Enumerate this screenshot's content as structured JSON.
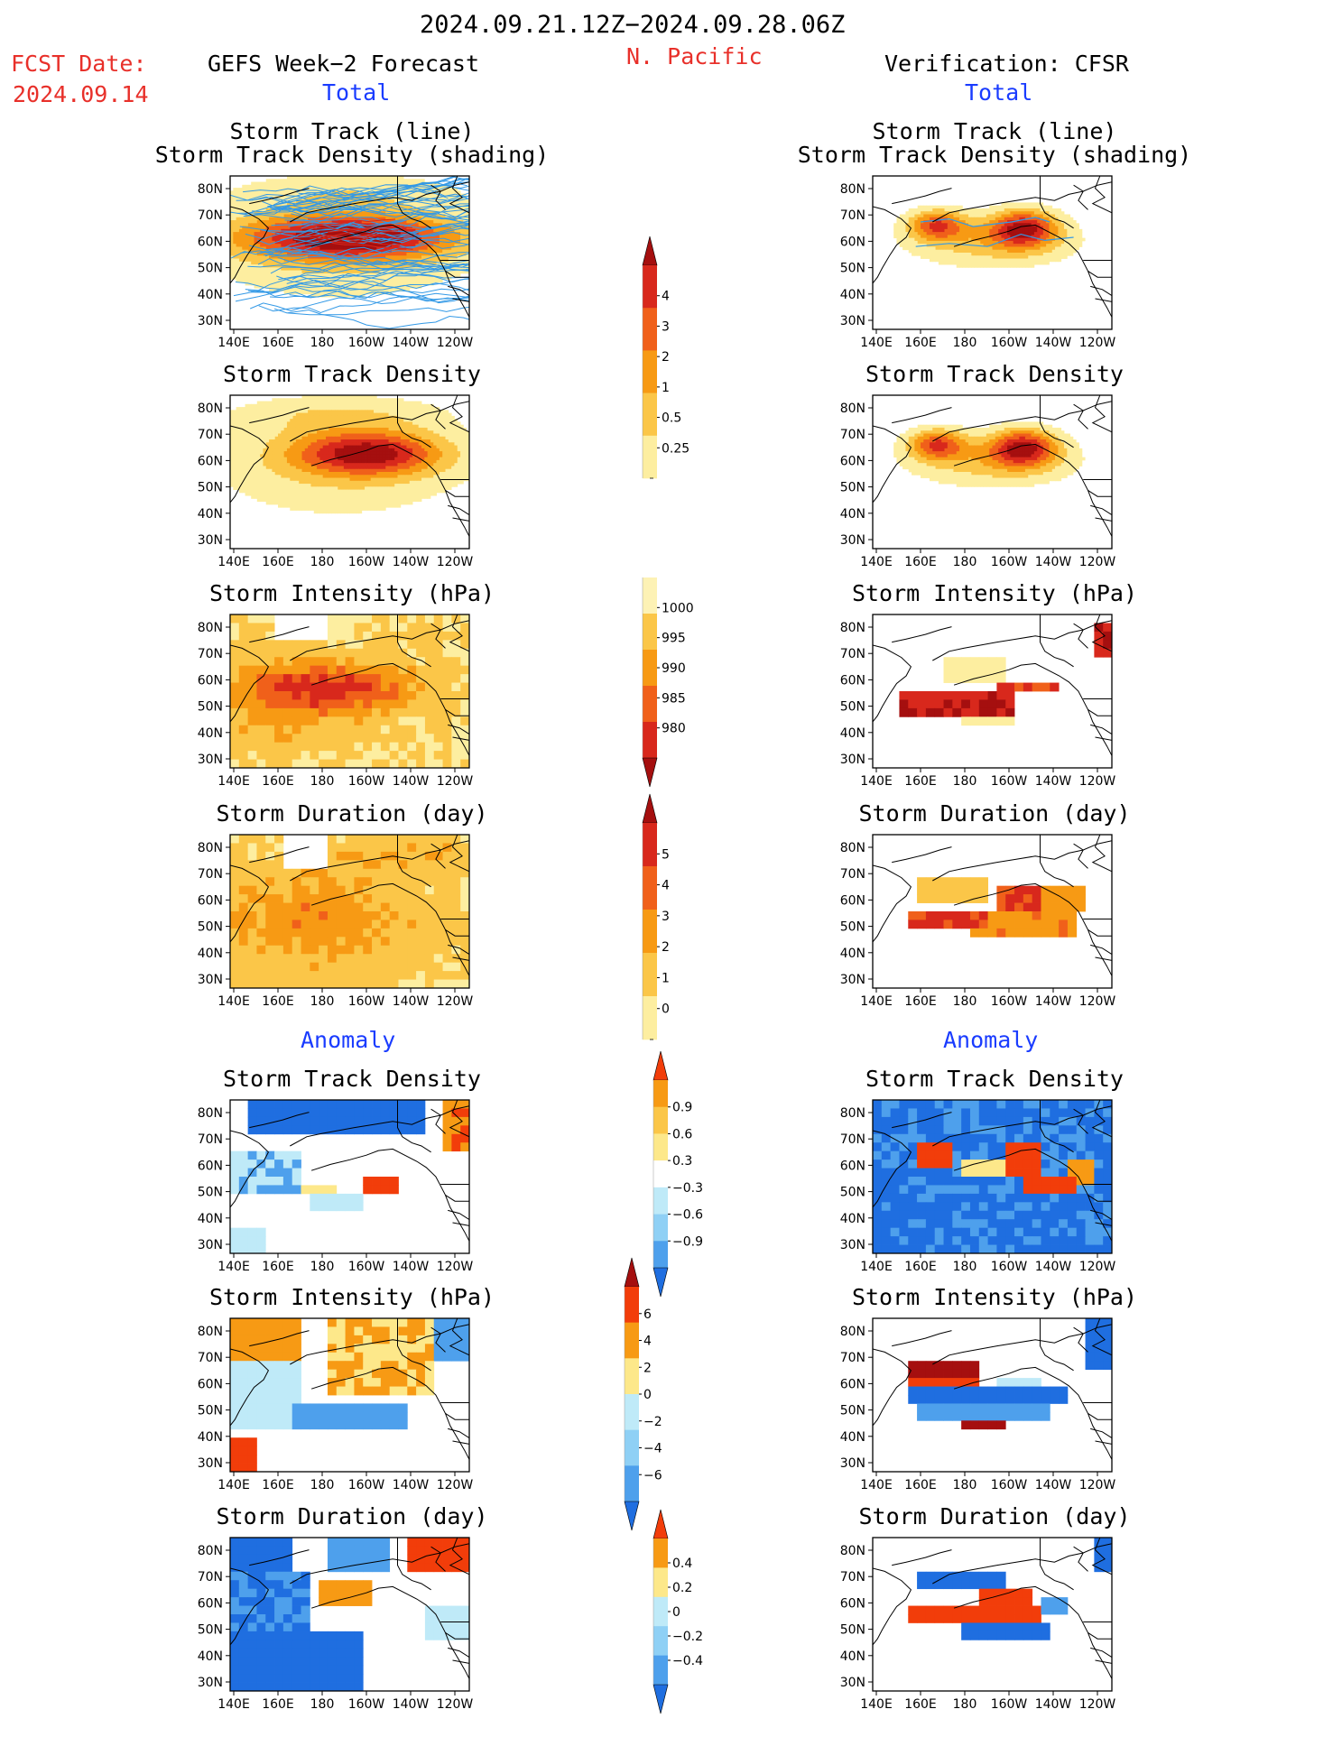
{
  "header": {
    "period": "2024.09.21.12Z−2024.09.28.06Z",
    "fcst_label": "FCST Date:",
    "fcst_date": "2024.09.14",
    "model": "GEFS Week−2 Forecast",
    "region": "N. Pacific",
    "verification": "Verification: CFSR",
    "total_label": "Total",
    "anomaly_label": "Anomaly"
  },
  "axes": {
    "lat_labels": [
      "80N",
      "70N",
      "60N",
      "50N",
      "40N",
      "30N"
    ],
    "lon_labels": [
      "140E",
      "160E",
      "180",
      "160W",
      "140W",
      "120W"
    ]
  },
  "panels": [
    {
      "id": "fc-track-line",
      "title": [
        "Storm Track (line)",
        "Storm Track Density (shading)"
      ],
      "scheme": "warm",
      "pattern": "fc-track"
    },
    {
      "id": "fc-track-density",
      "title": [
        "Storm Track Density"
      ],
      "scheme": "warm",
      "pattern": "fc-density"
    },
    {
      "id": "fc-intensity",
      "title": [
        "Storm Intensity (hPa)"
      ],
      "scheme": "warm",
      "pattern": "fc-intensity"
    },
    {
      "id": "fc-duration",
      "title": [
        "Storm Duration (day)"
      ],
      "scheme": "warm",
      "pattern": "fc-duration"
    },
    {
      "id": "fc-anom-density",
      "title": [
        "Storm Track Density"
      ],
      "scheme": "div",
      "pattern": "fc-anom-density"
    },
    {
      "id": "fc-anom-intensity",
      "title": [
        "Storm Intensity (hPa)"
      ],
      "scheme": "div",
      "pattern": "fc-anom-intensity"
    },
    {
      "id": "fc-anom-duration",
      "title": [
        "Storm Duration (day)"
      ],
      "scheme": "div",
      "pattern": "fc-anom-duration"
    },
    {
      "id": "vf-track-line",
      "title": [
        "Storm Track (line)",
        "Storm Track Density (shading)"
      ],
      "scheme": "warm",
      "pattern": "vf-track"
    },
    {
      "id": "vf-track-density",
      "title": [
        "Storm Track Density"
      ],
      "scheme": "warm",
      "pattern": "vf-density"
    },
    {
      "id": "vf-intensity",
      "title": [
        "Storm Intensity (hPa)"
      ],
      "scheme": "warm",
      "pattern": "vf-intensity"
    },
    {
      "id": "vf-duration",
      "title": [
        "Storm Duration (day)"
      ],
      "scheme": "warm",
      "pattern": "vf-duration"
    },
    {
      "id": "vf-anom-density",
      "title": [
        "Storm Track Density"
      ],
      "scheme": "div",
      "pattern": "vf-anom-density"
    },
    {
      "id": "vf-anom-intensity",
      "title": [
        "Storm Intensity (hPa)"
      ],
      "scheme": "div",
      "pattern": "vf-anom-intensity"
    },
    {
      "id": "vf-anom-duration",
      "title": [
        "Storm Duration (day)"
      ],
      "scheme": "div",
      "pattern": "vf-anom-duration"
    }
  ],
  "colorbars": [
    {
      "id": "cb-density",
      "labels": [
        "4",
        "3",
        "2",
        "1",
        "0.5",
        "0.25"
      ],
      "colors": [
        "#a50f0f",
        "#d8281c",
        "#f0601a",
        "#f79a14",
        "#fbc648",
        "#fdeea0"
      ],
      "arrow_top": true,
      "arrow_bottom": false
    },
    {
      "id": "cb-intensity",
      "labels": [
        "1000",
        "995",
        "990",
        "985",
        "980"
      ],
      "colors": [
        "#fdf2b5",
        "#fbc648",
        "#f79a14",
        "#f0601a",
        "#d8281c",
        "#a50f0f"
      ],
      "arrow_top": false,
      "arrow_bottom": true
    },
    {
      "id": "cb-duration",
      "labels": [
        "5",
        "4",
        "3",
        "2",
        "1",
        "0"
      ],
      "colors": [
        "#a50f0f",
        "#d8281c",
        "#f0601a",
        "#f79a14",
        "#fbc648",
        "#fdeea0"
      ],
      "arrow_top": true,
      "arrow_bottom": false
    },
    {
      "id": "cb-anom-density",
      "labels": [
        "0.9",
        "0.6",
        "0.3",
        "−0.3",
        "−0.6",
        "−0.9"
      ],
      "colors": [
        "#f23d0a",
        "#f79a14",
        "#fbc648",
        "#fde88a",
        "#ffffff",
        "#bfeaf8",
        "#8fd0f5",
        "#4ea0ec",
        "#1f6ee0"
      ],
      "arrow_top": true,
      "arrow_bottom": true
    },
    {
      "id": "cb-anom-intensity",
      "labels": [
        "6",
        "4",
        "2",
        "0",
        "−2",
        "−4",
        "−6"
      ],
      "colors": [
        "#a50f0f",
        "#f23d0a",
        "#f79a14",
        "#fde88a",
        "#bfeaf8",
        "#8fd0f5",
        "#4ea0ec",
        "#1f6ee0"
      ],
      "arrow_top": true,
      "arrow_bottom": true
    },
    {
      "id": "cb-anom-duration",
      "labels": [
        "0.4",
        "0.2",
        "0",
        "−0.2",
        "−0.4"
      ],
      "colors": [
        "#f23d0a",
        "#f79a14",
        "#fde88a",
        "#bfeaf8",
        "#8fd0f5",
        "#4ea0ec",
        "#1f6ee0"
      ],
      "arrow_top": true,
      "arrow_bottom": true
    }
  ],
  "colors": {
    "title_red": "#e8302a",
    "title_blue": "#1a3cff",
    "track_line": "#3399e6",
    "coast": "#000000"
  }
}
